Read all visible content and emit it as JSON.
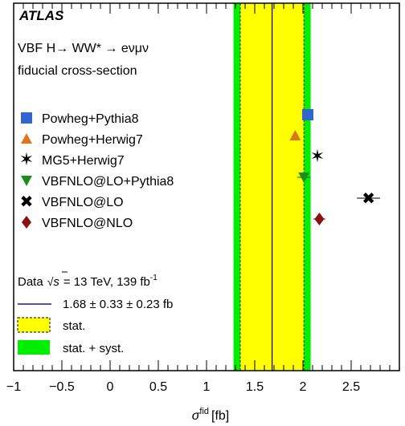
{
  "chart_data": {
    "type": "scatter",
    "experiment": "ATLAS",
    "title_lines": [
      "VBF H→ WW* → eνμν",
      "fiducial cross-section"
    ],
    "xlabel_symbol": "σ",
    "xlabel_sup": "fid",
    "xlabel_unit": "[fb]",
    "xlim": [
      -1,
      3
    ],
    "xticks": [
      -1,
      -0.5,
      0,
      0.5,
      1,
      1.5,
      2,
      2.5
    ],
    "xtick_labels": [
      "−1",
      "−0.5",
      "0",
      "0.5",
      "1",
      "1.5",
      "2",
      "2.5"
    ],
    "grid": false,
    "legend_placement": "left",
    "measurement": {
      "central": 1.68,
      "stat_err": 0.33,
      "syst_err": 0.23,
      "stat_band": [
        1.35,
        2.01
      ],
      "total_band": [
        1.28,
        2.08
      ]
    },
    "predictions": [
      {
        "name": "Powheg+Pythia8",
        "value": 2.05,
        "err": 0.0,
        "marker": "square",
        "color": "#3366cc"
      },
      {
        "name": "Powheg+Herwig7",
        "value": 1.92,
        "err": 0.0,
        "marker": "triangle-up",
        "color": "#e0731f"
      },
      {
        "name": "MG5+Herwig7",
        "value": 2.15,
        "err": 0.0,
        "marker": "star",
        "color": "#dd44aa"
      },
      {
        "name": "VBFNLO@LO+Pythia8",
        "value": 2.01,
        "err": 0.07,
        "marker": "triangle-down",
        "color": "#1e8c1e"
      },
      {
        "name": "VBFNLO@LO",
        "value": 2.68,
        "err": 0.12,
        "marker": "cross",
        "color": "#2a2a5a"
      },
      {
        "name": "VBFNLO@NLO",
        "value": 2.17,
        "err": 0.06,
        "marker": "diamond",
        "color": "#8b1010"
      }
    ],
    "data_legend": {
      "data_prefix": "Data",
      "sqrt_s_text": "s",
      "data_suffix": "= 13 TeV, 139 fb",
      "lumi_sup": "-1",
      "line_label": "1.68 ± 0.33 ± 0.23 fb",
      "stat_label": "stat.",
      "total_label": "stat. + syst."
    },
    "colors": {
      "stat_band": "#ffff00",
      "total_band": "#00ee00",
      "data_line": "#1a1a80"
    }
  }
}
